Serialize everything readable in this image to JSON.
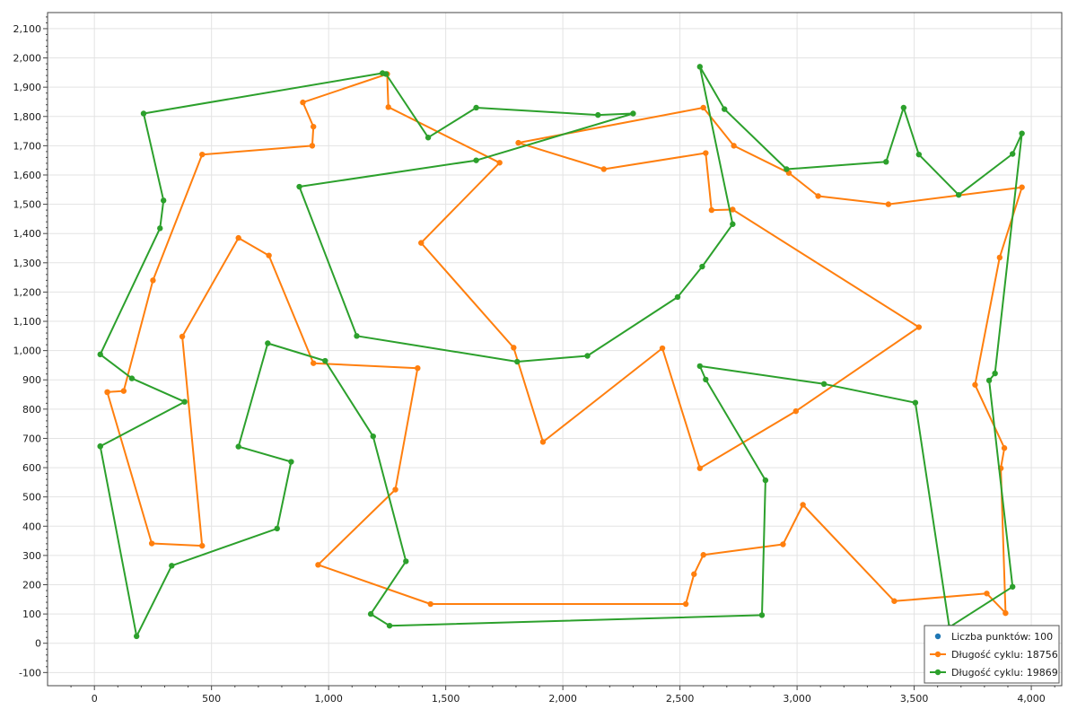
{
  "chart_data": {
    "type": "line",
    "title": "",
    "xlabel": "",
    "ylabel": "",
    "xlim": [
      -200,
      4130
    ],
    "ylim": [
      -145,
      2155
    ],
    "x_ticks": [
      0,
      500,
      1000,
      1500,
      2000,
      2500,
      3000,
      3500,
      4000
    ],
    "x_tick_labels": [
      "0",
      "500",
      "1,000",
      "1,500",
      "2,000",
      "2,500",
      "3,000",
      "3,500",
      "4,000"
    ],
    "y_ticks": [
      -100,
      0,
      100,
      200,
      300,
      400,
      500,
      600,
      700,
      800,
      900,
      1000,
      1100,
      1200,
      1300,
      1400,
      1500,
      1600,
      1700,
      1800,
      1900,
      2000,
      2100
    ],
    "y_tick_labels": [
      "-100",
      "0",
      "100",
      "200",
      "300",
      "400",
      "500",
      "600",
      "700",
      "800",
      "900",
      "1,000",
      "1,100",
      "1,200",
      "1,300",
      "1,400",
      "1,500",
      "1,600",
      "1,700",
      "1,800",
      "1,900",
      "2,000",
      "2,100"
    ],
    "grid": true,
    "legend_position": "bottom-right",
    "colors": {
      "points": "#1f77b4",
      "orange": "#ff7f0e",
      "green": "#2ca02c"
    },
    "legend": [
      {
        "label": "Liczba punktów: 100",
        "style": "marker",
        "color": "#1f77b4"
      },
      {
        "label": "Długość cyklu: 18756",
        "style": "line",
        "color": "#ff7f0e"
      },
      {
        "label": "Długość cyklu: 19869",
        "style": "line",
        "color": "#2ca02c"
      }
    ],
    "series": [
      {
        "name": "Długość cyklu: 18756",
        "color": "#ff7f0e",
        "closed": false,
        "points": [
          [
            55,
            858
          ],
          [
            125,
            862
          ],
          [
            250,
            1240
          ],
          [
            460,
            1670
          ],
          [
            930,
            1700
          ],
          [
            935,
            1765
          ],
          [
            890,
            1848
          ],
          [
            1250,
            1945
          ],
          [
            1255,
            1832
          ],
          [
            1730,
            1642
          ],
          [
            1395,
            1368
          ],
          [
            1790,
            1010
          ],
          [
            1915,
            688
          ],
          [
            2425,
            1008
          ],
          [
            2585,
            598
          ],
          [
            2995,
            793
          ],
          [
            3520,
            1080
          ],
          [
            2725,
            1482
          ],
          [
            2635,
            1480
          ],
          [
            2610,
            1675
          ],
          [
            2175,
            1620
          ],
          [
            1810,
            1710
          ],
          [
            2600,
            1830
          ],
          [
            2730,
            1700
          ],
          [
            2965,
            1607
          ],
          [
            3090,
            1528
          ],
          [
            3390,
            1500
          ],
          [
            3960,
            1558
          ],
          [
            3865,
            1318
          ],
          [
            3760,
            883
          ],
          [
            3885,
            667
          ],
          [
            3870,
            598
          ],
          [
            3890,
            103
          ],
          [
            3810,
            170
          ],
          [
            3415,
            144
          ],
          [
            3025,
            473
          ],
          [
            2940,
            338
          ],
          [
            2600,
            302
          ],
          [
            2560,
            236
          ],
          [
            2525,
            134
          ],
          [
            1435,
            134
          ],
          [
            955,
            268
          ],
          [
            1285,
            525
          ],
          [
            1380,
            940
          ],
          [
            935,
            957
          ],
          [
            745,
            1325
          ],
          [
            615,
            1385
          ],
          [
            375,
            1048
          ],
          [
            460,
            333
          ],
          [
            245,
            341
          ],
          [
            55,
            858
          ]
        ]
      },
      {
        "name": "Długość cyklu: 19869",
        "color": "#2ca02c",
        "closed": false,
        "points": [
          [
            25,
            673
          ],
          [
            180,
            24
          ],
          [
            330,
            265
          ],
          [
            780,
            392
          ],
          [
            840,
            620
          ],
          [
            615,
            672
          ],
          [
            740,
            1025
          ],
          [
            985,
            965
          ],
          [
            1190,
            707
          ],
          [
            1330,
            280
          ],
          [
            1180,
            100
          ],
          [
            1260,
            60
          ],
          [
            2850,
            96
          ],
          [
            2865,
            557
          ],
          [
            2610,
            901
          ],
          [
            2585,
            947
          ],
          [
            3115,
            886
          ],
          [
            3505,
            822
          ],
          [
            3650,
            55
          ],
          [
            3920,
            193
          ],
          [
            3820,
            898
          ],
          [
            3845,
            922
          ],
          [
            3960,
            1742
          ],
          [
            3920,
            1672
          ],
          [
            3690,
            1532
          ],
          [
            3520,
            1670
          ],
          [
            3455,
            1830
          ],
          [
            3380,
            1645
          ],
          [
            2955,
            1620
          ],
          [
            2690,
            1825
          ],
          [
            2585,
            1970
          ],
          [
            2725,
            1432
          ],
          [
            2595,
            1287
          ],
          [
            2490,
            1183
          ],
          [
            2105,
            982
          ],
          [
            1805,
            962
          ],
          [
            1120,
            1050
          ],
          [
            875,
            1560
          ],
          [
            1630,
            1650
          ],
          [
            2300,
            1810
          ],
          [
            2150,
            1805
          ],
          [
            1630,
            1830
          ],
          [
            1425,
            1728
          ],
          [
            1245,
            1945
          ],
          [
            1230,
            1948
          ],
          [
            210,
            1810
          ],
          [
            295,
            1513
          ],
          [
            280,
            1418
          ],
          [
            25,
            987
          ],
          [
            160,
            905
          ],
          [
            385,
            825
          ],
          [
            25,
            673
          ]
        ]
      }
    ]
  }
}
